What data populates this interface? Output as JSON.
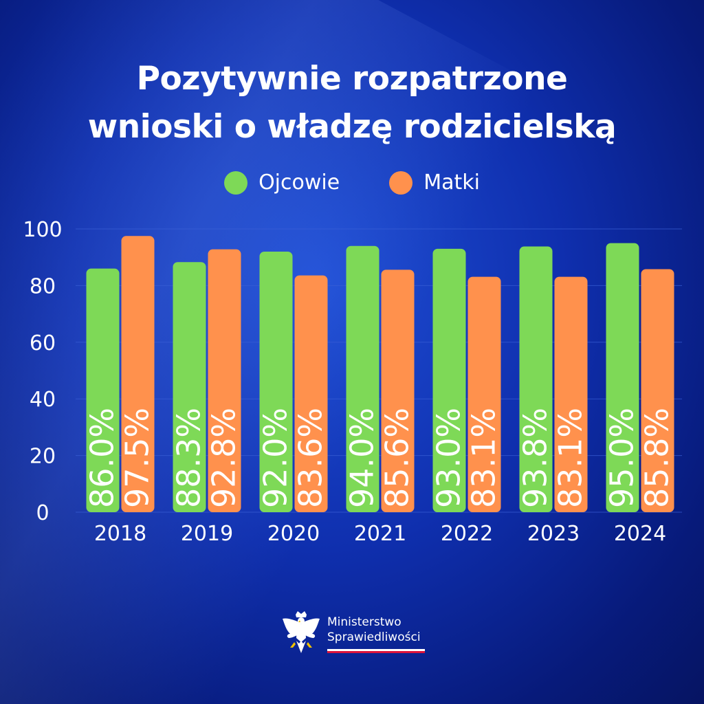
{
  "title": {
    "line1": "Pozytywnie rozpatrzone",
    "line2": "wnioski o władzę rodzicielską"
  },
  "colors": {
    "fathers": "#7ed957",
    "mothers": "#ff914d",
    "gridline": "#3a5fd6",
    "text": "#ffffff"
  },
  "chart_data": {
    "type": "bar",
    "title": "Pozytywnie rozpatrzone wnioski o władzę rodzicielską",
    "categories": [
      "2018",
      "2019",
      "2020",
      "2021",
      "2022",
      "2023",
      "2024"
    ],
    "series": [
      {
        "name": "Ojcowie",
        "values": [
          86.0,
          88.3,
          92.0,
          94.0,
          93.0,
          93.8,
          95.0
        ],
        "labels": [
          "86.0%",
          "88.3%",
          "92.0%",
          "94.0%",
          "93.0%",
          "93.8%",
          "95.0%"
        ]
      },
      {
        "name": "Matki",
        "values": [
          97.5,
          92.8,
          83.6,
          85.6,
          83.1,
          83.1,
          85.8
        ],
        "labels": [
          "97.5%",
          "92.8%",
          "83.6%",
          "85.6%",
          "83.1%",
          "83.1%",
          "85.8%"
        ]
      }
    ],
    "ylim": [
      0,
      100
    ],
    "yticks": [
      "0",
      "20",
      "40",
      "60",
      "80",
      "100"
    ],
    "grid": true,
    "legend": "top-center",
    "xlabel": "",
    "ylabel": ""
  },
  "logo": {
    "line1": "Ministerstwo",
    "line2": "Sprawiedliwości",
    "icon": "eagle-emblem-icon"
  }
}
